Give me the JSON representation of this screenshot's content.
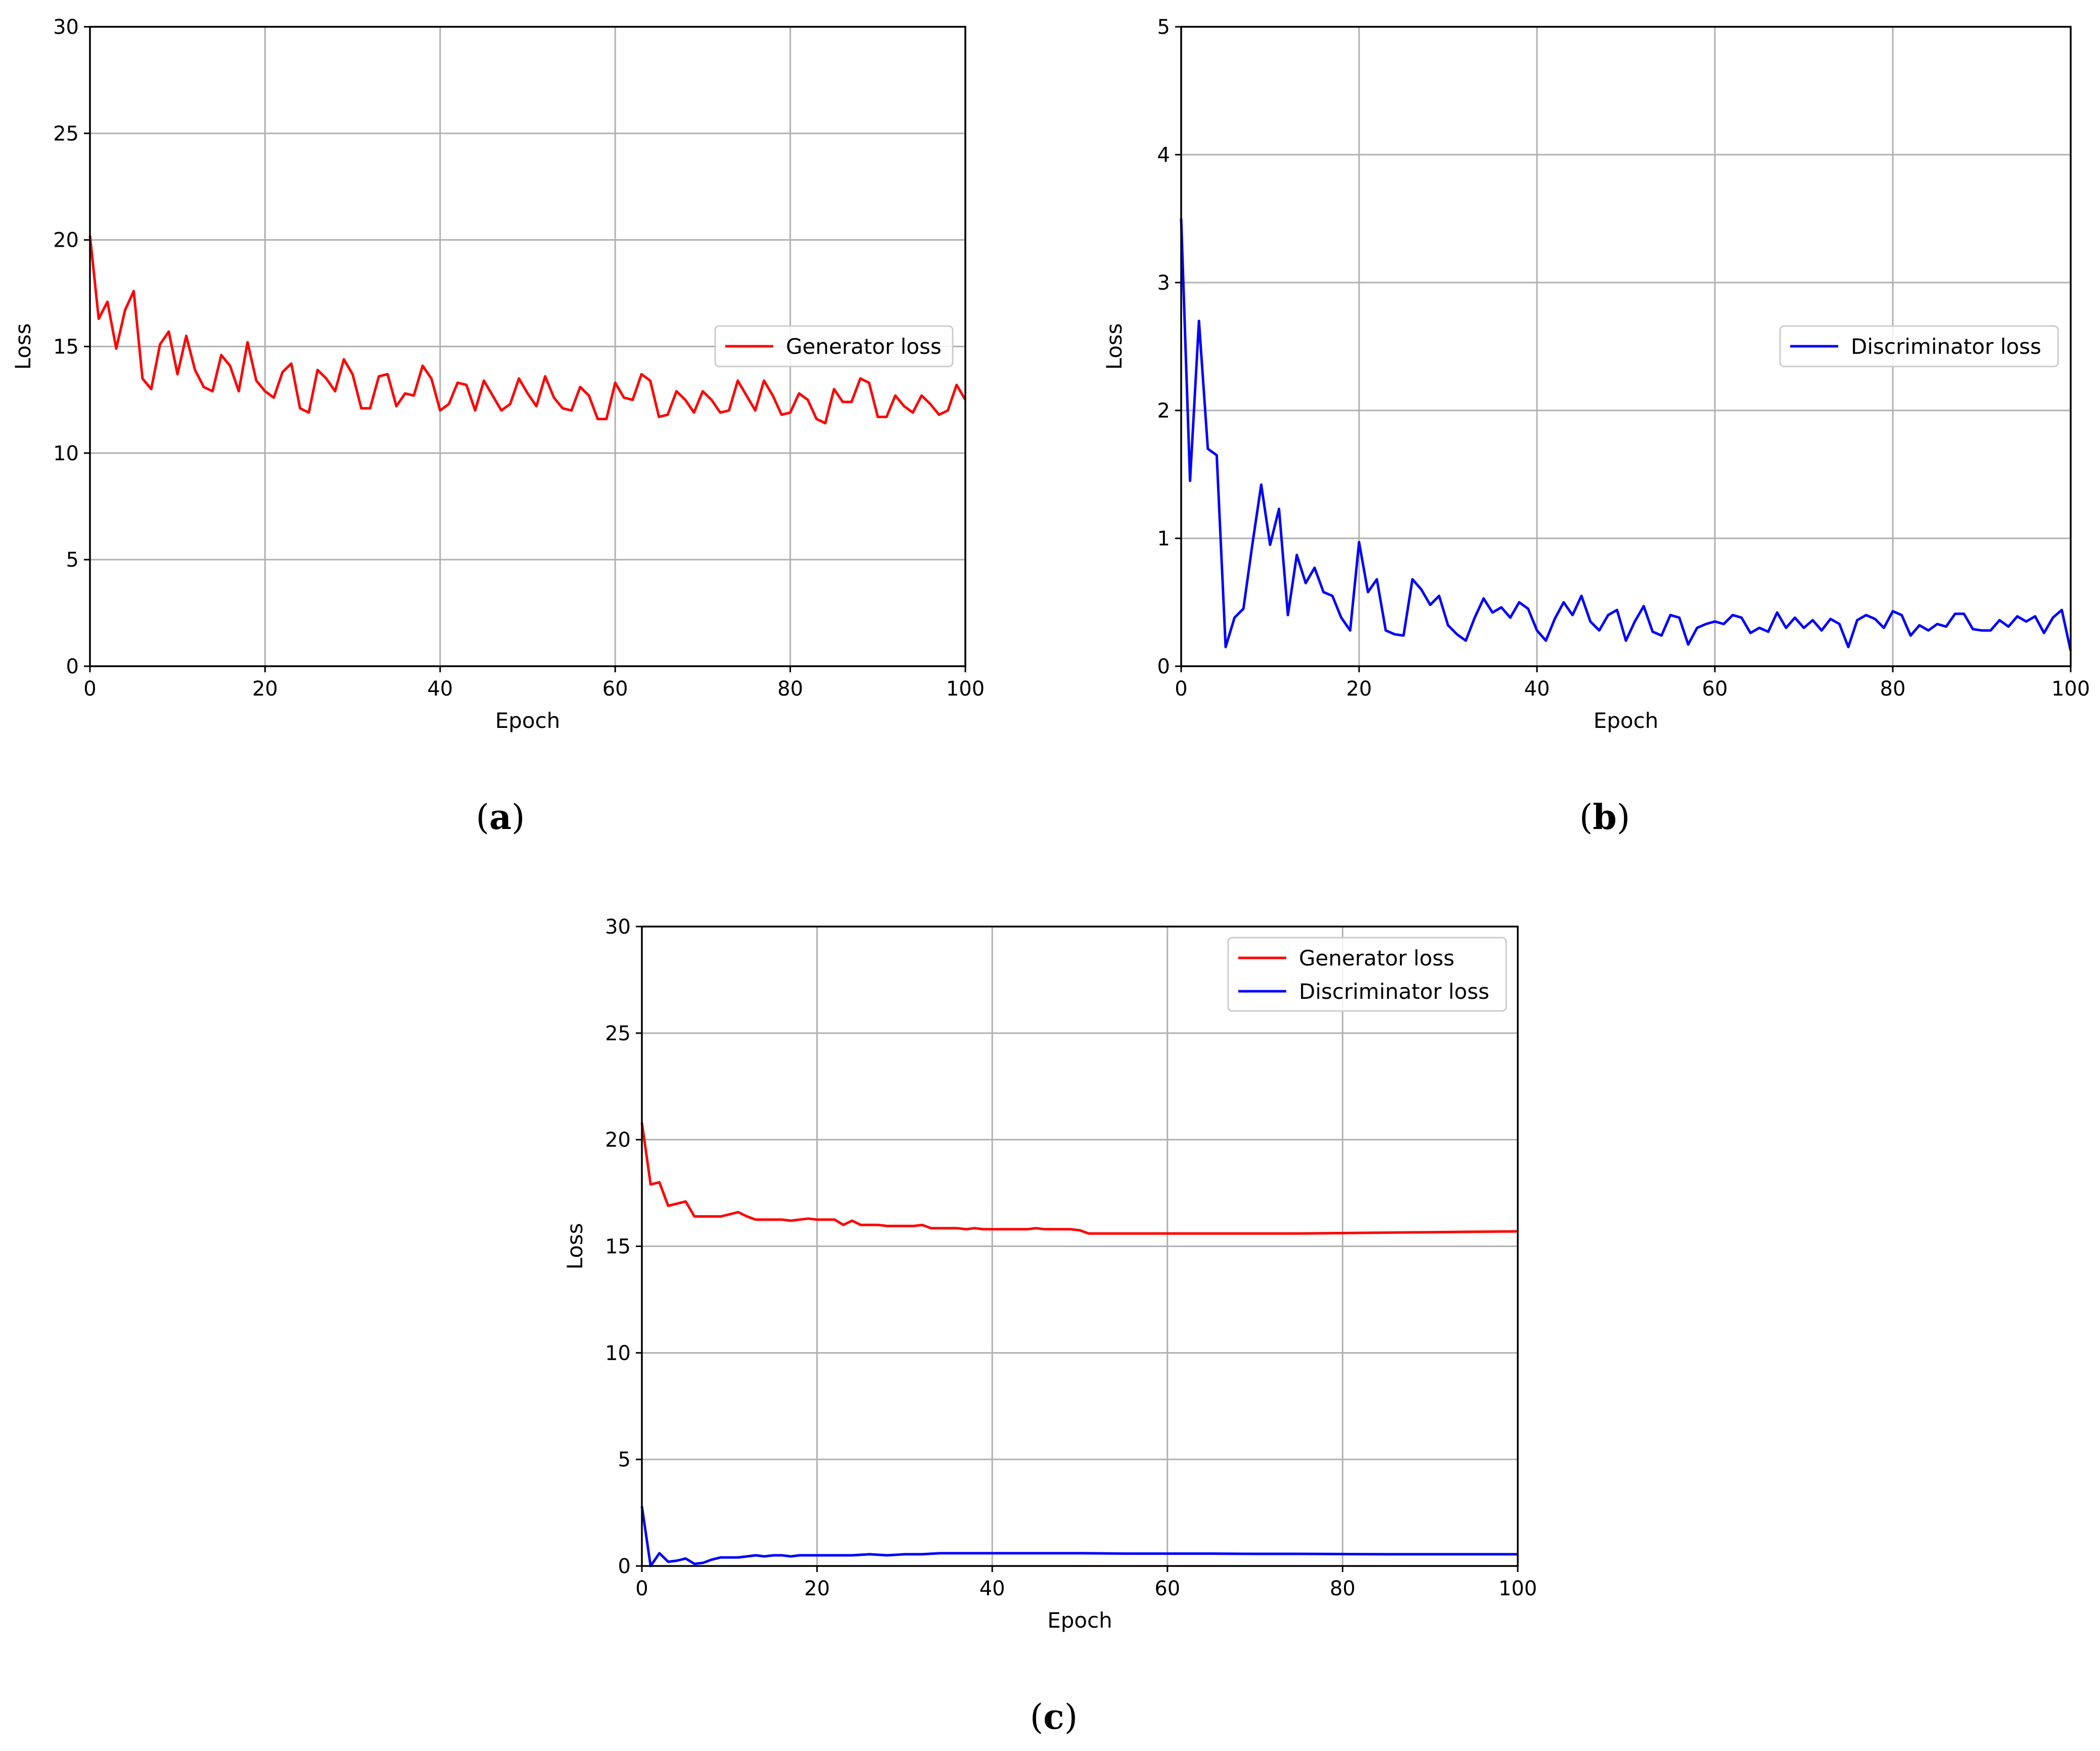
{
  "chart_data": [
    {
      "type": "line",
      "panel_label": "a",
      "xlabel": "Epoch",
      "ylabel": "Loss",
      "xlim": [
        0,
        100
      ],
      "ylim": [
        0,
        30
      ],
      "xticks": [
        0,
        20,
        40,
        60,
        80,
        100
      ],
      "yticks": [
        0,
        5,
        10,
        15,
        20,
        25,
        30
      ],
      "grid": true,
      "legend_position": "right",
      "series": [
        {
          "name": "Generator loss",
          "color": "#ff0000",
          "x": [
            0,
            1,
            2,
            3,
            4,
            5,
            6,
            7,
            8,
            9,
            10,
            11,
            12,
            13,
            14,
            15,
            16,
            17,
            18,
            19,
            20,
            21,
            22,
            23,
            24,
            25,
            26,
            27,
            28,
            29,
            30,
            31,
            32,
            33,
            34,
            35,
            36,
            37,
            38,
            39,
            40,
            41,
            42,
            43,
            44,
            45,
            46,
            47,
            48,
            49,
            50,
            51,
            52,
            53,
            54,
            55,
            56,
            57,
            58,
            59,
            60,
            61,
            62,
            63,
            64,
            65,
            66,
            67,
            68,
            69,
            70,
            71,
            72,
            73,
            74,
            75,
            76,
            77,
            78,
            79,
            80,
            81,
            82,
            83,
            84,
            85,
            86,
            87,
            88,
            89,
            90,
            91,
            92,
            93,
            94,
            95,
            96,
            97,
            98,
            99,
            100
          ],
          "y": [
            20.2,
            16.3,
            17.1,
            14.9,
            16.7,
            17.6,
            13.5,
            13.0,
            15.1,
            15.7,
            13.7,
            15.5,
            13.9,
            13.1,
            12.9,
            14.6,
            14.1,
            12.9,
            15.2,
            13.4,
            12.9,
            12.6,
            13.8,
            14.2,
            12.1,
            11.9,
            13.9,
            13.5,
            12.9,
            14.4,
            13.7,
            12.1,
            12.1,
            13.6,
            13.7,
            12.2,
            12.8,
            12.7,
            14.1,
            13.5,
            12.0,
            12.3,
            13.3,
            13.2,
            12.0,
            13.4,
            12.7,
            12.0,
            12.3,
            13.5,
            12.8,
            12.2,
            13.6,
            12.6,
            12.1,
            12.0,
            13.1,
            12.7,
            11.6,
            11.6,
            13.3,
            12.6,
            12.5,
            13.7,
            13.4,
            11.7,
            11.8,
            12.9,
            12.5,
            11.9,
            12.9,
            12.5,
            11.9,
            12.0,
            13.4,
            12.7,
            12.0,
            13.4,
            12.7,
            11.8,
            11.9,
            12.8,
            12.5,
            11.6,
            11.4,
            13.0,
            12.4,
            12.4,
            13.5,
            13.3,
            11.7,
            11.7,
            12.7,
            12.2,
            11.9,
            12.7,
            12.3,
            11.8,
            12.0,
            13.2,
            12.5
          ]
        }
      ]
    },
    {
      "type": "line",
      "panel_label": "b",
      "xlabel": "Epoch",
      "ylabel": "Loss",
      "xlim": [
        0,
        100
      ],
      "ylim": [
        0,
        5
      ],
      "xticks": [
        0,
        20,
        40,
        60,
        80,
        100
      ],
      "yticks": [
        0,
        1,
        2,
        3,
        4,
        5
      ],
      "grid": true,
      "legend_position": "right",
      "series": [
        {
          "name": "Discriminator loss",
          "color": "#0000ff",
          "x": [
            0,
            1,
            2,
            3,
            4,
            5,
            6,
            7,
            8,
            9,
            10,
            11,
            12,
            13,
            14,
            15,
            16,
            17,
            18,
            19,
            20,
            21,
            22,
            23,
            24,
            25,
            26,
            27,
            28,
            29,
            30,
            31,
            32,
            33,
            34,
            35,
            36,
            37,
            38,
            39,
            40,
            41,
            42,
            43,
            44,
            45,
            46,
            47,
            48,
            49,
            50,
            51,
            52,
            53,
            54,
            55,
            56,
            57,
            58,
            59,
            60,
            61,
            62,
            63,
            64,
            65,
            66,
            67,
            68,
            69,
            70,
            71,
            72,
            73,
            74,
            75,
            76,
            77,
            78,
            79,
            80,
            81,
            82,
            83,
            84,
            85,
            86,
            87,
            88,
            89,
            90,
            91,
            92,
            93,
            94,
            95,
            96,
            97,
            98,
            99,
            100
          ],
          "y": [
            3.5,
            1.45,
            2.7,
            1.7,
            1.65,
            0.15,
            0.38,
            0.45,
            0.95,
            1.42,
            0.95,
            1.23,
            0.4,
            0.87,
            0.65,
            0.77,
            0.58,
            0.55,
            0.38,
            0.28,
            0.97,
            0.58,
            0.68,
            0.28,
            0.25,
            0.24,
            0.68,
            0.6,
            0.48,
            0.55,
            0.32,
            0.25,
            0.2,
            0.38,
            0.53,
            0.42,
            0.46,
            0.38,
            0.5,
            0.45,
            0.28,
            0.2,
            0.37,
            0.5,
            0.4,
            0.55,
            0.35,
            0.28,
            0.4,
            0.44,
            0.2,
            0.35,
            0.47,
            0.27,
            0.24,
            0.4,
            0.38,
            0.17,
            0.3,
            0.33,
            0.35,
            0.33,
            0.4,
            0.38,
            0.26,
            0.3,
            0.27,
            0.42,
            0.3,
            0.38,
            0.3,
            0.36,
            0.28,
            0.37,
            0.33,
            0.15,
            0.36,
            0.4,
            0.37,
            0.3,
            0.43,
            0.4,
            0.24,
            0.32,
            0.28,
            0.33,
            0.31,
            0.41,
            0.41,
            0.29,
            0.28,
            0.28,
            0.36,
            0.31,
            0.39,
            0.35,
            0.39,
            0.26,
            0.38,
            0.44,
            0.12
          ]
        }
      ]
    },
    {
      "type": "line",
      "panel_label": "c",
      "xlabel": "Epoch",
      "ylabel": "Loss",
      "xlim": [
        0,
        100
      ],
      "ylim": [
        0,
        30
      ],
      "xticks": [
        0,
        20,
        40,
        60,
        80,
        100
      ],
      "yticks": [
        0,
        5,
        10,
        15,
        20,
        25,
        30
      ],
      "grid": true,
      "legend_position": "top-right",
      "series": [
        {
          "name": "Generator loss",
          "color": "#ff0000",
          "x": [
            0,
            1,
            2,
            3,
            4,
            5,
            6,
            7,
            8,
            9,
            10,
            11,
            12,
            13,
            14,
            15,
            16,
            17,
            18,
            19,
            20,
            21,
            22,
            23,
            24,
            25,
            26,
            27,
            28,
            29,
            30,
            31,
            32,
            33,
            34,
            35,
            36,
            37,
            38,
            39,
            40,
            41,
            42,
            43,
            44,
            45,
            46,
            47,
            48,
            49,
            50,
            51,
            52,
            53,
            54,
            55,
            56,
            57,
            58,
            59,
            60,
            65,
            70,
            75,
            80,
            85,
            90,
            95,
            100
          ],
          "y": [
            20.8,
            17.9,
            18.0,
            16.9,
            17.0,
            17.1,
            16.4,
            16.4,
            16.4,
            16.4,
            16.5,
            16.6,
            16.4,
            16.25,
            16.25,
            16.25,
            16.25,
            16.2,
            16.25,
            16.3,
            16.25,
            16.25,
            16.25,
            16.0,
            16.2,
            16.0,
            16.0,
            16.0,
            15.95,
            15.95,
            15.95,
            15.95,
            16.0,
            15.85,
            15.85,
            15.85,
            15.85,
            15.8,
            15.85,
            15.8,
            15.8,
            15.8,
            15.8,
            15.8,
            15.8,
            15.85,
            15.8,
            15.8,
            15.8,
            15.8,
            15.75,
            15.6,
            15.6,
            15.6,
            15.6,
            15.6,
            15.6,
            15.6,
            15.6,
            15.6,
            15.6,
            15.6,
            15.6,
            15.6,
            15.62,
            15.64,
            15.66,
            15.68,
            15.7
          ]
        },
        {
          "name": "Discriminator loss",
          "color": "#0000ff",
          "x": [
            0,
            1,
            2,
            3,
            4,
            5,
            6,
            7,
            8,
            9,
            10,
            11,
            12,
            13,
            14,
            15,
            16,
            17,
            18,
            19,
            20,
            22,
            24,
            26,
            28,
            30,
            32,
            34,
            36,
            38,
            40,
            42,
            44,
            46,
            48,
            50,
            55,
            60,
            65,
            70,
            75,
            80,
            85,
            90,
            95,
            100
          ],
          "y": [
            2.8,
            0.0,
            0.6,
            0.2,
            0.25,
            0.35,
            0.1,
            0.15,
            0.3,
            0.4,
            0.4,
            0.4,
            0.45,
            0.5,
            0.45,
            0.5,
            0.5,
            0.45,
            0.5,
            0.5,
            0.5,
            0.5,
            0.5,
            0.55,
            0.5,
            0.55,
            0.55,
            0.6,
            0.6,
            0.6,
            0.6,
            0.6,
            0.6,
            0.6,
            0.6,
            0.6,
            0.58,
            0.58,
            0.58,
            0.57,
            0.57,
            0.56,
            0.55,
            0.55,
            0.55,
            0.55
          ]
        }
      ]
    }
  ]
}
